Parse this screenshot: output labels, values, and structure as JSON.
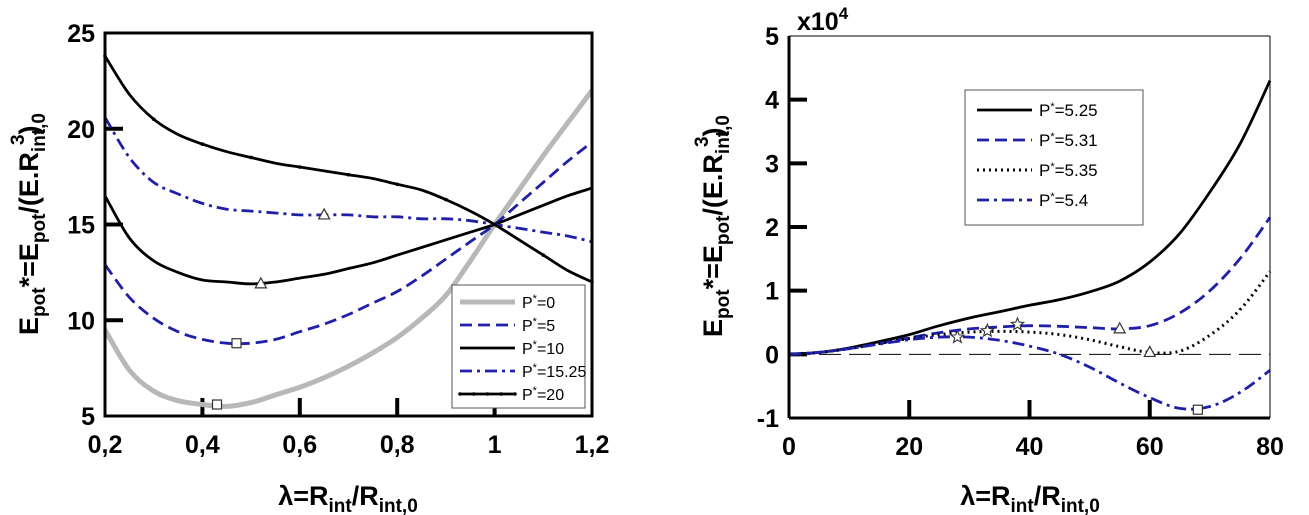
{
  "chart_data": [
    {
      "type": "line",
      "xlabel_main": "λ=R",
      "xlabel_sub1": "int",
      "xlabel_mid": "/R",
      "xlabel_sub2": "int,0",
      "ylabel_main": "E",
      "ylabel_sub1": "pot",
      "ylabel_mid": "*=E",
      "ylabel_sub2": "pot",
      "ylabel_mid2": "/(E.R",
      "ylabel_sub3": "int,0",
      "ylabel_sup": "3",
      "ylabel_end": ")",
      "xlim": [
        0.2,
        1.2
      ],
      "ylim": [
        5,
        25
      ],
      "x_ticks": [
        0.2,
        0.4,
        0.6,
        0.8,
        1.0,
        1.2
      ],
      "x_tick_labels": [
        "0,2",
        "0,4",
        "0,6",
        "0,8",
        "1",
        "1,2"
      ],
      "y_ticks": [
        5,
        10,
        15,
        20,
        25
      ],
      "y_tick_labels": [
        "5",
        "10",
        "15",
        "20",
        "25"
      ],
      "legend_position": "bottom-right",
      "legend_prefix": "P",
      "legend_star": "*",
      "series": [
        {
          "name": "=0",
          "color": "#b8b8b8",
          "style": "solid-thick",
          "x": [
            0.2,
            0.25,
            0.3,
            0.35,
            0.4,
            0.45,
            0.5,
            0.55,
            0.6,
            0.65,
            0.7,
            0.75,
            0.8,
            0.85,
            0.9,
            0.95,
            1.0,
            1.05,
            1.1,
            1.15,
            1.2
          ],
          "y": [
            9.5,
            7.4,
            6.3,
            5.8,
            5.6,
            5.5,
            5.7,
            6.1,
            6.5,
            7.0,
            7.6,
            8.3,
            9.1,
            10.1,
            11.3,
            13.1,
            15.0,
            16.8,
            18.6,
            20.3,
            22.0
          ],
          "marker": {
            "type": "square",
            "x": 0.43,
            "y": 5.6
          }
        },
        {
          "name": "=5",
          "color": "#1f1fa8",
          "style": "dashed",
          "x": [
            0.2,
            0.25,
            0.3,
            0.35,
            0.4,
            0.45,
            0.5,
            0.55,
            0.6,
            0.65,
            0.7,
            0.75,
            0.8,
            0.85,
            0.9,
            0.95,
            1.0,
            1.05,
            1.1,
            1.15,
            1.2
          ],
          "y": [
            12.9,
            11.2,
            10.1,
            9.4,
            9.0,
            8.8,
            8.8,
            9.0,
            9.4,
            9.8,
            10.3,
            10.9,
            11.5,
            12.3,
            13.2,
            14.1,
            15.0,
            16.1,
            17.2,
            18.3,
            19.3
          ],
          "marker": {
            "type": "square",
            "x": 0.47,
            "y": 8.8
          }
        },
        {
          "name": "=10",
          "color": "#000000",
          "style": "solid",
          "x": [
            0.2,
            0.25,
            0.3,
            0.35,
            0.4,
            0.45,
            0.5,
            0.55,
            0.6,
            0.65,
            0.7,
            0.75,
            0.8,
            0.85,
            0.9,
            0.95,
            1.0,
            1.05,
            1.1,
            1.15,
            1.2
          ],
          "y": [
            16.5,
            14.3,
            13.1,
            12.5,
            12.1,
            12.0,
            11.9,
            12.0,
            12.2,
            12.4,
            12.7,
            13.0,
            13.4,
            13.8,
            14.2,
            14.6,
            15.0,
            15.5,
            16.0,
            16.5,
            16.9
          ],
          "marker": {
            "type": "triangle",
            "x": 0.52,
            "y": 11.9
          }
        },
        {
          "name": "=15.25",
          "color": "#1f1fa8",
          "style": "dashdot",
          "x": [
            0.2,
            0.25,
            0.3,
            0.35,
            0.4,
            0.45,
            0.5,
            0.55,
            0.6,
            0.65,
            0.7,
            0.75,
            0.8,
            0.85,
            0.9,
            0.95,
            1.0,
            1.05,
            1.1,
            1.15,
            1.2
          ],
          "y": [
            20.6,
            18.5,
            17.2,
            16.6,
            16.1,
            15.8,
            15.7,
            15.6,
            15.5,
            15.5,
            15.5,
            15.4,
            15.4,
            15.3,
            15.3,
            15.2,
            15.0,
            14.8,
            14.6,
            14.4,
            14.1
          ],
          "marker": {
            "type": "triangle",
            "x": 0.65,
            "y": 15.5
          }
        },
        {
          "name": "=20",
          "color": "#000000",
          "style": "solid-dots",
          "x": [
            0.2,
            0.25,
            0.3,
            0.35,
            0.4,
            0.45,
            0.5,
            0.55,
            0.6,
            0.65,
            0.7,
            0.75,
            0.8,
            0.85,
            0.9,
            0.95,
            1.0,
            1.05,
            1.1,
            1.15,
            1.2
          ],
          "y": [
            23.8,
            21.8,
            20.5,
            19.7,
            19.2,
            18.8,
            18.5,
            18.2,
            18.0,
            17.8,
            17.6,
            17.4,
            17.1,
            16.8,
            16.3,
            15.7,
            15.0,
            14.2,
            13.4,
            12.6,
            12.0
          ],
          "marker": null
        }
      ]
    },
    {
      "type": "line",
      "xlabel_main": "λ=R",
      "xlabel_sub1": "int",
      "xlabel_mid": "/R",
      "xlabel_sub2": "int,0",
      "ylabel_main": "E",
      "ylabel_sub1": "pot",
      "ylabel_mid": "*=E",
      "ylabel_sub2": "pot",
      "ylabel_mid2": "/(E.R",
      "ylabel_sub3": "int,0",
      "ylabel_sup": "3",
      "ylabel_end": ")",
      "multiplier_base": "x10",
      "multiplier_exp": "4",
      "xlim": [
        0,
        80
      ],
      "ylim": [
        -1,
        5
      ],
      "x_ticks": [
        0,
        20,
        40,
        60,
        80
      ],
      "x_tick_labels": [
        "0",
        "20",
        "40",
        "60",
        "80"
      ],
      "y_ticks": [
        -1,
        0,
        1,
        2,
        3,
        4,
        5
      ],
      "y_tick_labels": [
        "-1",
        "0",
        "1",
        "2",
        "3",
        "4",
        "5"
      ],
      "zero_line": true,
      "legend_position": "top-left",
      "legend_prefix": "P",
      "legend_star": "*",
      "series": [
        {
          "name": "=5.25",
          "color": "#000000",
          "style": "solid",
          "x": [
            0,
            5,
            10,
            15,
            20,
            25,
            30,
            35,
            40,
            45,
            50,
            55,
            60,
            65,
            70,
            75,
            80
          ],
          "y": [
            0,
            0.03,
            0.1,
            0.2,
            0.31,
            0.45,
            0.57,
            0.67,
            0.77,
            0.86,
            0.98,
            1.15,
            1.45,
            1.9,
            2.55,
            3.3,
            4.3
          ],
          "marker": null
        },
        {
          "name": "=5.31",
          "color": "#1f1fa8",
          "style": "dashed",
          "x": [
            0,
            5,
            10,
            15,
            20,
            25,
            30,
            35,
            40,
            45,
            50,
            55,
            60,
            65,
            70,
            75,
            80
          ],
          "y": [
            0,
            0.03,
            0.09,
            0.17,
            0.26,
            0.34,
            0.4,
            0.43,
            0.45,
            0.44,
            0.42,
            0.4,
            0.45,
            0.65,
            1.0,
            1.5,
            2.15
          ],
          "marker": {
            "type": "triangle",
            "x": 55,
            "y": 0.4
          }
        },
        {
          "name": "=5.35",
          "color": "#000000",
          "style": "dotted",
          "x": [
            0,
            5,
            10,
            15,
            20,
            25,
            30,
            35,
            40,
            45,
            50,
            55,
            60,
            65,
            70,
            75,
            80
          ],
          "y": [
            0,
            0.03,
            0.09,
            0.17,
            0.25,
            0.31,
            0.35,
            0.36,
            0.35,
            0.31,
            0.23,
            0.12,
            0.03,
            0.05,
            0.3,
            0.7,
            1.3
          ],
          "marker": {
            "type": "triangle",
            "x": 60,
            "y": 0.03
          }
        },
        {
          "name": "=5.4",
          "color": "#1f1fa8",
          "style": "dashdot",
          "x": [
            0,
            5,
            10,
            15,
            20,
            25,
            30,
            35,
            40,
            45,
            50,
            55,
            60,
            65,
            70,
            75,
            80
          ],
          "y": [
            0,
            0.03,
            0.09,
            0.16,
            0.23,
            0.27,
            0.27,
            0.22,
            0.13,
            0.0,
            -0.2,
            -0.45,
            -0.68,
            -0.85,
            -0.82,
            -0.6,
            -0.25
          ],
          "marker": {
            "type": "square",
            "x": 68,
            "y": -0.87
          }
        }
      ],
      "star_markers": [
        {
          "x": 28,
          "y": 0.27
        },
        {
          "x": 33,
          "y": 0.37
        },
        {
          "x": 38,
          "y": 0.47
        }
      ]
    }
  ]
}
